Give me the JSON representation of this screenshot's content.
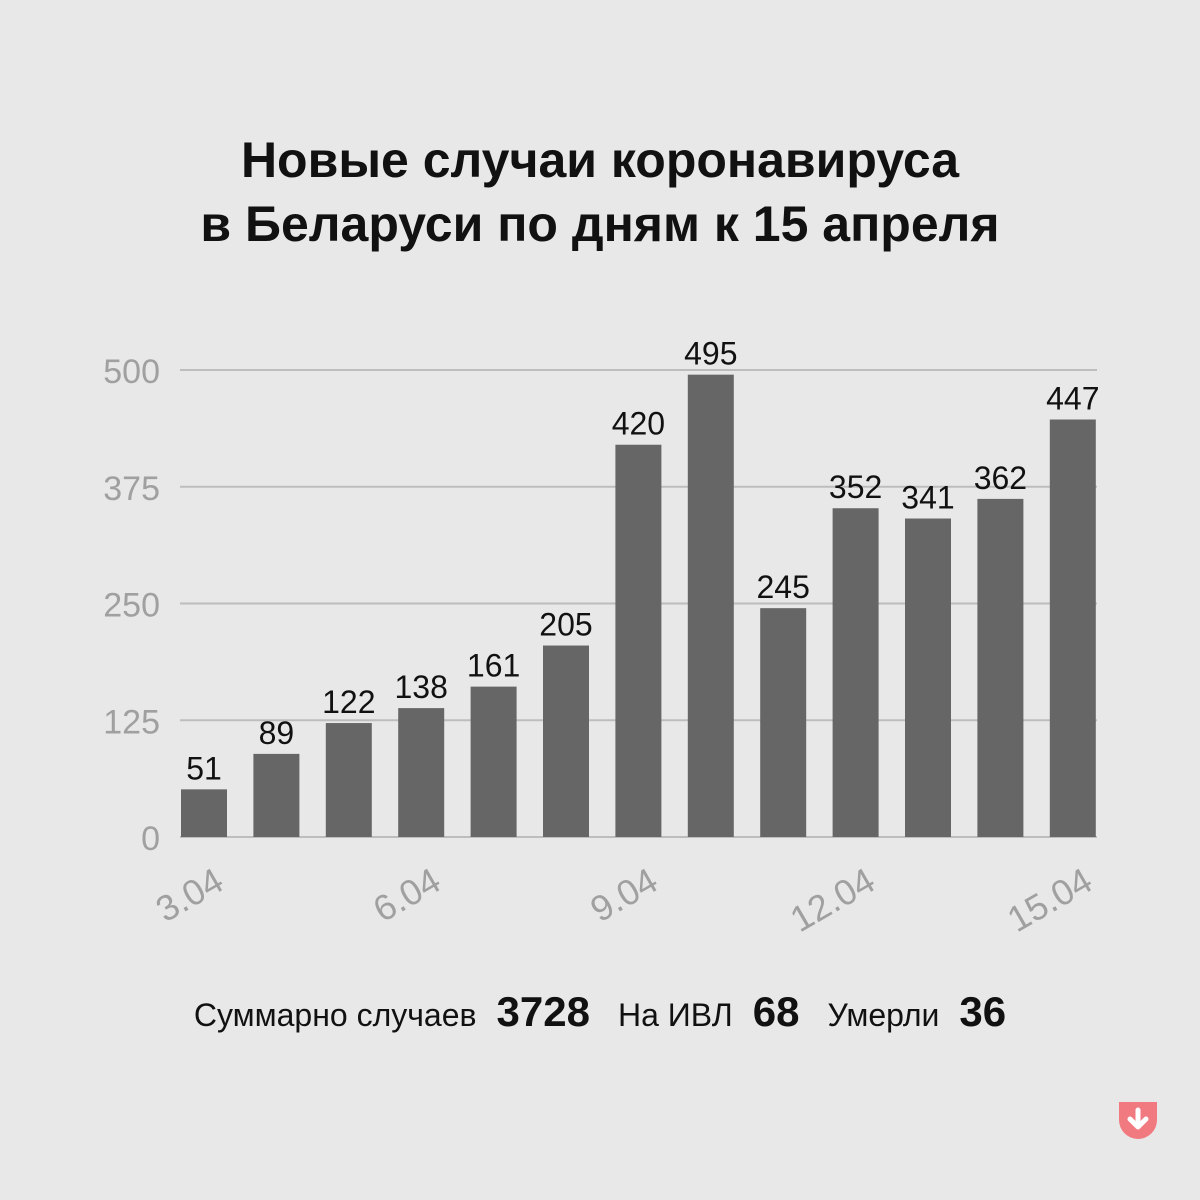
{
  "title": {
    "line1": "Новые случаи коронавируса",
    "line2": "в Беларуси по дням к 15 апреля"
  },
  "chart_data": {
    "type": "bar",
    "categories": [
      "3.04",
      "4.04",
      "5.04",
      "6.04",
      "7.04",
      "8.04",
      "9.04",
      "10.04",
      "11.04",
      "12.04",
      "13.04",
      "14.04",
      "15.04"
    ],
    "x_tick_labels": [
      "3.04",
      "6.04",
      "9.04",
      "12.04",
      "15.04"
    ],
    "values": [
      51,
      89,
      122,
      138,
      161,
      205,
      420,
      495,
      245,
      352,
      341,
      362,
      447
    ],
    "y_ticks": [
      0,
      125,
      250,
      375,
      500
    ],
    "ylim": [
      0,
      500
    ],
    "grid": true,
    "data_labels": true,
    "colors": {
      "bar": "#666666",
      "grid": "#bdbdbd",
      "tick": "#a0a0a0",
      "label": "#111111"
    }
  },
  "summary": {
    "cases_label": "Суммарно случаев",
    "cases_value": "3728",
    "ventilator_label": "На ИВЛ",
    "ventilator_value": "68",
    "deaths_label": "Умерли",
    "deaths_value": "36"
  },
  "logo": {
    "icon": "down-arrow-icon",
    "color": "#f07a80"
  }
}
